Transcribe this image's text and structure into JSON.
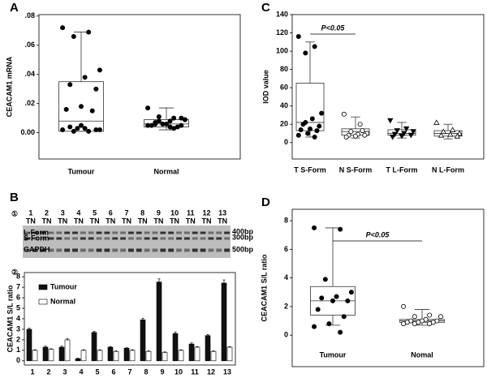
{
  "chart_data": [
    {
      "panel": "A",
      "type": "box",
      "ylabel": "CEACAM1 mRNA",
      "categories": [
        "Tumour",
        "Normal"
      ],
      "ylim": [
        -0.018,
        0.081
      ],
      "yticks": [
        {
          "value": 0,
          "label": "0.00"
        },
        {
          "value": 0.02,
          "label": ".02"
        },
        {
          "value": 0.04,
          "label": ".04"
        },
        {
          "value": 0.06,
          "label": ".06"
        },
        {
          "value": 0.08,
          "label": ".08"
        }
      ],
      "groups": [
        {
          "marker": "filled-circle",
          "box": [
            0.001,
            0.001,
            0.008,
            0.035,
            0.069
          ],
          "points": [
            0.072,
            0.069,
            0.066,
            0.043,
            0.038,
            0.033,
            0.03,
            0.018,
            0.016,
            0.015,
            0.003,
            0.002,
            0.001,
            0.001,
            0.002,
            0.003,
            0.004,
            0.002,
            0.005
          ]
        },
        {
          "marker": "filled-circle",
          "box": [
            0.002,
            0.004,
            0.006,
            0.009,
            0.017
          ],
          "points": [
            0.017,
            0.01,
            0.011,
            0.009,
            0.008,
            0.007,
            0.01,
            0.006,
            0.005,
            0.004,
            0.006,
            0.005,
            0.003,
            0.008,
            0.009,
            0.004,
            0.006,
            0.005
          ]
        }
      ]
    },
    {
      "panel": "B",
      "type": "bar",
      "ylabel": "CEACAM1 S/L ratio",
      "categories": [
        "1",
        "2",
        "3",
        "4",
        "5",
        "6",
        "7",
        "8",
        "9",
        "10",
        "11",
        "12",
        "13"
      ],
      "ylim": [
        -0.4,
        8.4
      ],
      "yticks": [
        0,
        1,
        2,
        3,
        4,
        5,
        6,
        7,
        8
      ],
      "legend": "upper-left",
      "series": [
        {
          "name": "Tumour",
          "color": "#111111",
          "values": [
            3.0,
            1.3,
            1.3,
            0.2,
            2.7,
            1.3,
            1.2,
            3.9,
            7.5,
            2.6,
            1.6,
            2.4,
            7.4
          ],
          "errors": [
            0.1,
            0.1,
            0.1,
            0.05,
            0.1,
            0.05,
            0.05,
            0.15,
            0.3,
            0.15,
            0.1,
            0.1,
            0.3
          ]
        },
        {
          "name": "Normal",
          "color": "#ffffff",
          "values": [
            1.0,
            1.1,
            2.0,
            1.0,
            1.0,
            0.9,
            1.0,
            0.9,
            0.8,
            1.0,
            1.3,
            0.9,
            1.3
          ],
          "errors": [
            0.05,
            0.05,
            0.1,
            0.05,
            0.05,
            0.05,
            0.05,
            0.05,
            0.05,
            0.05,
            0.05,
            0.05,
            0.05
          ]
        }
      ]
    },
    {
      "panel": "C",
      "type": "box",
      "ylabel": "IOD value",
      "annotation": "P<0.05",
      "categories": [
        "T S-Form",
        "N S-Form",
        "T L-Form",
        "N L-Form"
      ],
      "ylim": [
        -18,
        140
      ],
      "yticks": [
        0,
        20,
        40,
        60,
        80,
        100,
        120,
        140
      ],
      "groups": [
        {
          "marker": "filled-circle",
          "box": [
            6,
            13,
            22,
            65,
            110
          ],
          "points": [
            116,
            105,
            98,
            32,
            26,
            20,
            18,
            15,
            14,
            13,
            10,
            8,
            6,
            22
          ]
        },
        {
          "marker": "open-circle",
          "box": [
            5,
            8,
            12,
            15,
            28
          ],
          "points": [
            31,
            20,
            12,
            10,
            9,
            8,
            8,
            7,
            6,
            13
          ]
        },
        {
          "marker": "filled-triangle-down",
          "box": [
            5,
            8,
            10,
            14,
            22
          ],
          "points": [
            24,
            15,
            13,
            12,
            10,
            9,
            8,
            7,
            6
          ]
        },
        {
          "marker": "open-triangle",
          "box": [
            4,
            7,
            10,
            13,
            20
          ],
          "points": [
            22,
            14,
            12,
            10,
            9,
            8,
            7
          ]
        }
      ]
    },
    {
      "panel": "D",
      "type": "box",
      "ylabel": "CEACAM1 S/L ratio",
      "annotation": "P<0.05",
      "categories": [
        "Tumour",
        "Nomal"
      ],
      "ylim": [
        -2.2,
        8.8
      ],
      "yticks": [
        0,
        2,
        4,
        6,
        8
      ],
      "groups": [
        {
          "marker": "filled-circle",
          "box": [
            0.7,
            1.4,
            2.4,
            3.4,
            7.5
          ],
          "points": [
            7.5,
            7.4,
            3.9,
            3.0,
            2.7,
            2.6,
            2.4,
            2.4,
            1.8,
            1.3,
            0.8,
            0.6,
            0.2
          ]
        },
        {
          "marker": "open-circle",
          "box": [
            0.7,
            0.9,
            1.0,
            1.1,
            1.8
          ],
          "points": [
            2.0,
            1.4,
            1.3,
            1.3,
            1.1,
            1.0,
            1.0,
            1.0,
            0.9,
            0.9,
            0.9,
            0.8,
            0.8,
            0.8
          ]
        }
      ]
    }
  ],
  "gel": {
    "step_labels": [
      "①",
      "②"
    ],
    "lanes": [
      "1",
      "2",
      "3",
      "4",
      "5",
      "6",
      "7",
      "8",
      "9",
      "10",
      "11",
      "12",
      "13"
    ],
    "lane_pair": "TN",
    "bands": [
      "L-Form",
      "S-Form",
      "GAPDH"
    ],
    "markers": [
      "400bp",
      "300bp",
      "500bp"
    ]
  }
}
